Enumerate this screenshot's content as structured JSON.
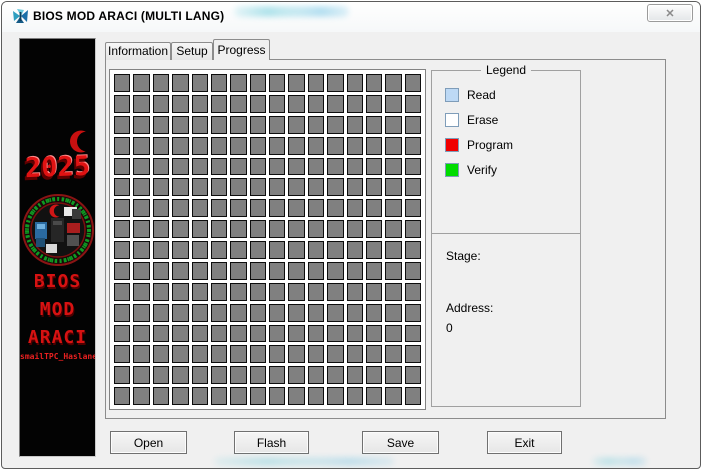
{
  "window": {
    "title": "BIOS MOD ARACI (MULTI LANG)",
    "icons": {
      "app": "butterfly-app-icon",
      "close_glyph": "✕"
    }
  },
  "sidebar": {
    "year": "2025",
    "title_lines": [
      "BIOS",
      "MOD",
      "ARACI"
    ],
    "credit": "smailTPC_Haslane",
    "accent_color": "#d61212",
    "emblem": "circular-hardware-emblem-with-red-crescent"
  },
  "tabs": [
    {
      "label": "Information",
      "active": false
    },
    {
      "label": "Setup",
      "active": false
    },
    {
      "label": "Progress",
      "active": true
    }
  ],
  "progress": {
    "grid": {
      "rows": 16,
      "cols": 16,
      "cell_color": "#808080",
      "cell_border": "#0d0d0d",
      "state": "idle"
    }
  },
  "legend": {
    "title": "Legend",
    "items": [
      {
        "label": "Read",
        "color": "#bdd9f5"
      },
      {
        "label": "Erase",
        "color": "#ffffff"
      },
      {
        "label": "Program",
        "color": "#f00000"
      },
      {
        "label": "Verify",
        "color": "#00dc00"
      }
    ]
  },
  "status": {
    "stage_label": "Stage:",
    "stage_value": "",
    "address_label": "Address:",
    "address_value": "0"
  },
  "buttons": [
    {
      "label": "Open"
    },
    {
      "label": "Flash"
    },
    {
      "label": "Save"
    },
    {
      "label": "Exit"
    }
  ]
}
